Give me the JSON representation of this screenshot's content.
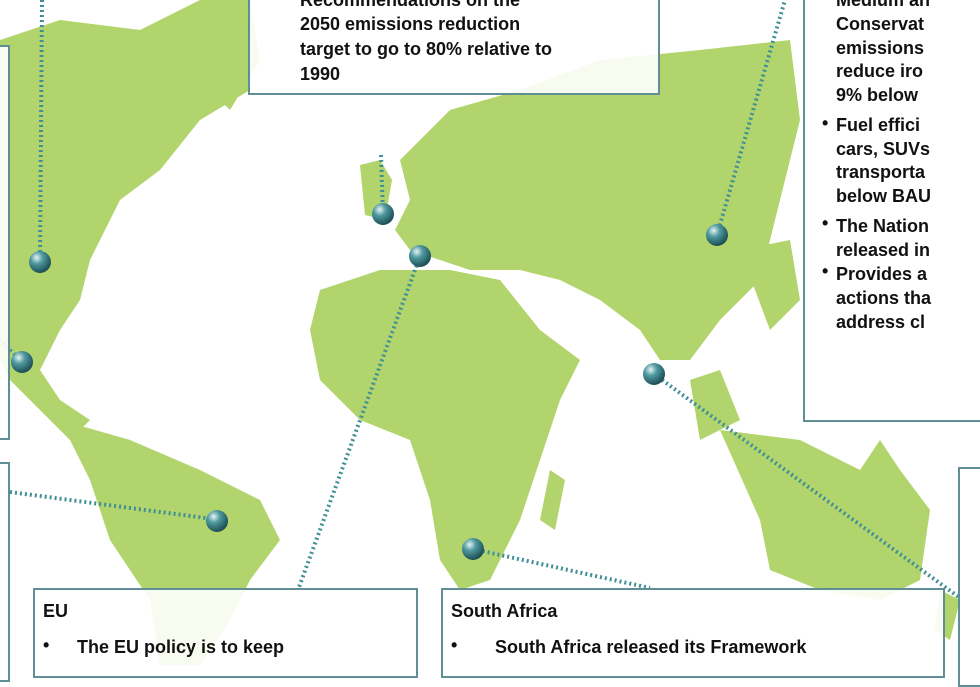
{
  "top_box": {
    "lines": [
      "Recommendations on the",
      "2050 emissions reduction",
      "target  to go to 80% relative to",
      "1990"
    ]
  },
  "right_box": {
    "lines": [
      "Medium an",
      "Conservat",
      "emissions",
      "reduce iro",
      "9% below",
      "Fuel effici",
      "cars, SUVs",
      "transporta",
      "below BAU",
      "The Nation",
      "released in",
      "Provides a",
      "actions tha",
      "address cl"
    ]
  },
  "eu_box": {
    "title": "EU",
    "bullets": [
      "The EU policy is to keep"
    ]
  },
  "south_africa_box": {
    "title": "South Africa",
    "bullets": [
      "South Africa released its Framework"
    ]
  }
}
